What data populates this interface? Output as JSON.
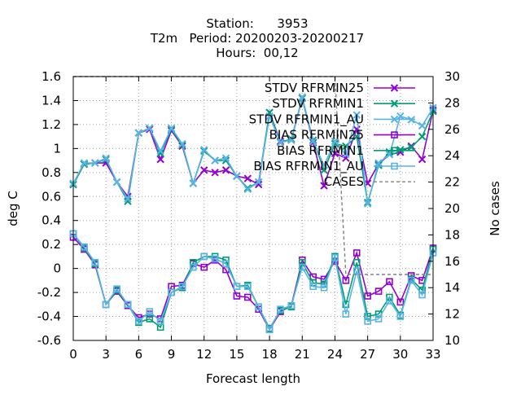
{
  "chart_data": {
    "type": "line",
    "title": [
      "Station:      3953",
      "T2m   Period: 20200203-20200217",
      "Hours:  00,12"
    ],
    "xlabel": "Forecast length",
    "ylabel": "deg C",
    "y2label": "No cases",
    "xlim": [
      0,
      33
    ],
    "ylim": [
      -0.6,
      1.6
    ],
    "y2lim": [
      10,
      30
    ],
    "xticks": [
      0,
      3,
      6,
      9,
      12,
      15,
      18,
      21,
      24,
      27,
      30,
      33
    ],
    "yticks": [
      -0.6,
      -0.4,
      -0.2,
      0,
      0.2,
      0.4,
      0.6,
      0.8,
      1,
      1.2,
      1.4,
      1.6
    ],
    "y2ticks": [
      10,
      12,
      14,
      16,
      18,
      20,
      22,
      24,
      26,
      28,
      30
    ],
    "grid": true,
    "legend_position": "top-right",
    "x": [
      0,
      1,
      2,
      3,
      4,
      5,
      6,
      7,
      8,
      9,
      10,
      11,
      12,
      13,
      14,
      15,
      16,
      17,
      18,
      19,
      20,
      21,
      22,
      23,
      24,
      25,
      26,
      27,
      28,
      29,
      30,
      31,
      32,
      33
    ],
    "series": [
      {
        "name": "STDV RFRMIN25",
        "color": "#9400d3",
        "marker": "x",
        "axis": "y",
        "values": [
          0.7,
          0.87,
          0.88,
          0.88,
          0.72,
          0.6,
          1.13,
          1.16,
          0.91,
          1.15,
          1.02,
          0.71,
          0.82,
          0.8,
          0.82,
          0.77,
          0.75,
          0.7,
          1.3,
          1.06,
          1.07,
          1.42,
          1.05,
          0.69,
          0.96,
          0.92,
          1.16,
          0.71,
          0.87,
          0.95,
          0.97,
          1.02,
          0.91,
          1.32
        ]
      },
      {
        "name": "STDV RFRMIN1",
        "color": "#009e73",
        "marker": "x",
        "axis": "y",
        "values": [
          0.7,
          0.87,
          0.88,
          0.91,
          0.72,
          0.56,
          1.13,
          1.17,
          0.96,
          1.16,
          1.03,
          0.71,
          0.98,
          0.9,
          0.9,
          0.77,
          0.67,
          0.72,
          1.3,
          1.05,
          1.08,
          1.42,
          1.07,
          0.82,
          1.04,
          1.02,
          1.1,
          0.55,
          0.86,
          0.97,
          0.99,
          1.01,
          1.1,
          1.31
        ]
      },
      {
        "name": "STDV RFRMIN1_AU",
        "color": "#56b4e9",
        "marker": "x",
        "axis": "y",
        "values": [
          0.71,
          0.88,
          0.88,
          0.92,
          0.72,
          0.58,
          1.13,
          1.17,
          0.98,
          1.17,
          1.04,
          0.71,
          0.99,
          0.9,
          0.92,
          0.77,
          0.66,
          0.72,
          1.27,
          1.05,
          1.07,
          1.43,
          1.06,
          0.86,
          1.06,
          0.95,
          1.28,
          0.54,
          0.88,
          0.95,
          1.27,
          1.24,
          1.19,
          1.34
        ]
      },
      {
        "name": "BIAS RFRMIN25",
        "color": "#9400d3",
        "marker": "square",
        "axis": "y",
        "values": [
          0.26,
          0.16,
          0.03,
          -0.3,
          -0.19,
          -0.31,
          -0.41,
          -0.38,
          -0.42,
          -0.15,
          -0.14,
          0.04,
          0.01,
          0.07,
          -0.01,
          -0.23,
          -0.24,
          -0.34,
          -0.51,
          -0.36,
          -0.31,
          0.07,
          -0.07,
          -0.09,
          0.06,
          -0.1,
          0.13,
          -0.23,
          -0.19,
          -0.11,
          -0.28,
          -0.06,
          -0.1,
          0.17
        ]
      },
      {
        "name": "BIAS RFRMIN1",
        "color": "#009e73",
        "marker": "square",
        "axis": "y",
        "values": [
          0.29,
          0.17,
          0.04,
          -0.3,
          -0.18,
          -0.3,
          -0.45,
          -0.42,
          -0.49,
          -0.2,
          -0.16,
          0.05,
          0.1,
          0.1,
          0.07,
          -0.15,
          -0.14,
          -0.32,
          -0.5,
          -0.35,
          -0.32,
          0.05,
          -0.12,
          -0.13,
          0.1,
          -0.3,
          0.05,
          -0.4,
          -0.38,
          -0.24,
          -0.39,
          -0.09,
          -0.18,
          0.16
        ]
      },
      {
        "name": "BIAS RFRMIN1_AU",
        "color": "#56b4e9",
        "marker": "square",
        "axis": "y",
        "values": [
          0.29,
          0.18,
          0.05,
          -0.3,
          -0.17,
          -0.3,
          -0.44,
          -0.36,
          -0.44,
          -0.2,
          -0.15,
          0.01,
          0.1,
          0.08,
          0.04,
          -0.15,
          -0.15,
          -0.32,
          -0.51,
          -0.34,
          -0.31,
          0.01,
          -0.15,
          -0.16,
          0.09,
          -0.38,
          -0.02,
          -0.44,
          -0.42,
          -0.27,
          -0.4,
          -0.1,
          -0.22,
          0.13
        ]
      },
      {
        "name": "CASES",
        "color": "#808080",
        "marker": "none",
        "dash": true,
        "axis": "y2",
        "values": [
          30,
          30,
          30,
          30,
          30,
          30,
          30,
          30,
          30,
          30,
          30,
          30,
          30,
          30,
          30,
          30,
          30,
          30,
          30,
          30,
          30,
          30,
          30,
          30,
          30,
          15,
          15,
          15,
          15,
          15,
          15,
          15,
          15,
          15
        ]
      }
    ]
  }
}
